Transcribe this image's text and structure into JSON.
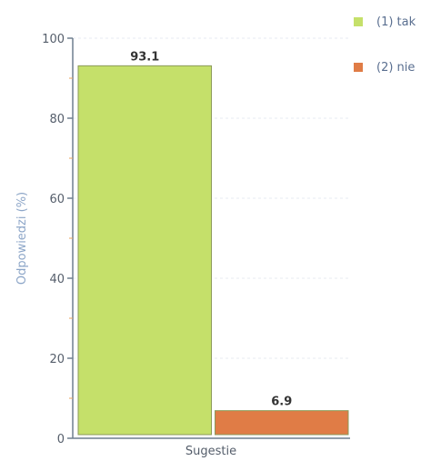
{
  "chart_data": {
    "type": "bar",
    "title": "",
    "xlabel": "Sugestie",
    "ylabel": "Odpowiedzi (%)",
    "ylim": [
      0,
      100
    ],
    "yticks": [
      0,
      20,
      40,
      60,
      80,
      100
    ],
    "grid": true,
    "legend_position": "right",
    "series": [
      {
        "name": "(1) tak",
        "value": 93.1,
        "label": "93.1",
        "color": "#c5e06a"
      },
      {
        "name": "(2) nie",
        "value": 6.9,
        "label": "6.9",
        "color": "#e07c46"
      }
    ]
  }
}
